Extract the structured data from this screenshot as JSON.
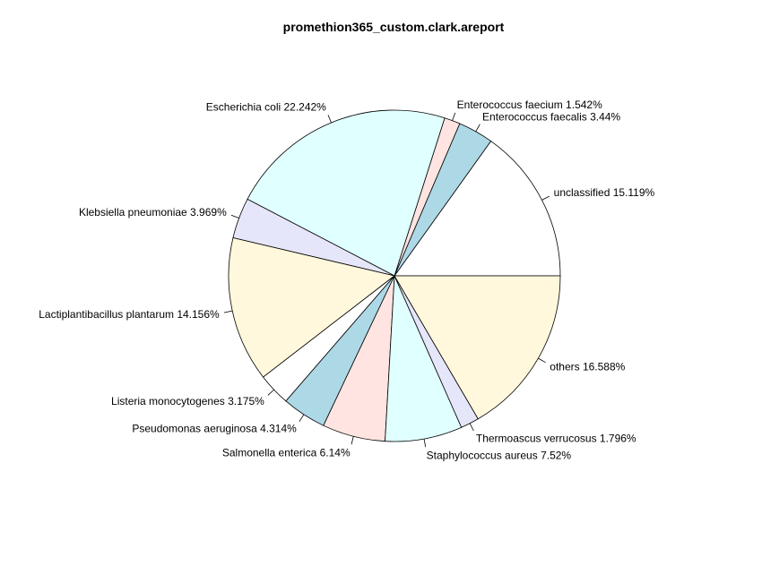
{
  "chart_data": {
    "type": "pie",
    "title": "promethion365_custom.clark.areport",
    "start_angle": "3 o'clock, counter-clockwise",
    "slices": [
      {
        "name": "unclassified",
        "value": 15.119,
        "label": "unclassified 15.119%",
        "color": "#ffffff"
      },
      {
        "name": "Enterococcus faecalis",
        "value": 3.44,
        "label": "Enterococcus faecalis 3.44%",
        "color": "#add8e6"
      },
      {
        "name": "Enterococcus faecium",
        "value": 1.542,
        "label": "Enterococcus faecium 1.542%",
        "color": "#ffe4e1"
      },
      {
        "name": "Escherichia coli",
        "value": 22.242,
        "label": "Escherichia coli 22.242%",
        "color": "#e0ffff"
      },
      {
        "name": "Klebsiella pneumoniae",
        "value": 3.969,
        "label": "Klebsiella pneumoniae 3.969%",
        "color": "#e6e6fa"
      },
      {
        "name": "Lactiplantibacillus plantarum",
        "value": 14.156,
        "label": "Lactiplantibacillus plantarum 14.156%",
        "color": "#fff8dc"
      },
      {
        "name": "Listeria monocytogenes",
        "value": 3.175,
        "label": "Listeria monocytogenes 3.175%",
        "color": "#ffffff"
      },
      {
        "name": "Pseudomonas aeruginosa",
        "value": 4.314,
        "label": "Pseudomonas aeruginosa 4.314%",
        "color": "#add8e6"
      },
      {
        "name": "Salmonella enterica",
        "value": 6.14,
        "label": "Salmonella enterica 6.14%",
        "color": "#ffe4e1"
      },
      {
        "name": "Staphylococcus aureus",
        "value": 7.52,
        "label": "Staphylococcus aureus 7.52%",
        "color": "#e0ffff"
      },
      {
        "name": "Thermoascus verrucosus",
        "value": 1.796,
        "label": "Thermoascus verrucosus 1.796%",
        "color": "#e6e6fa"
      },
      {
        "name": "others",
        "value": 16.588,
        "label": "others 16.588%",
        "color": "#fff8dc"
      }
    ]
  }
}
